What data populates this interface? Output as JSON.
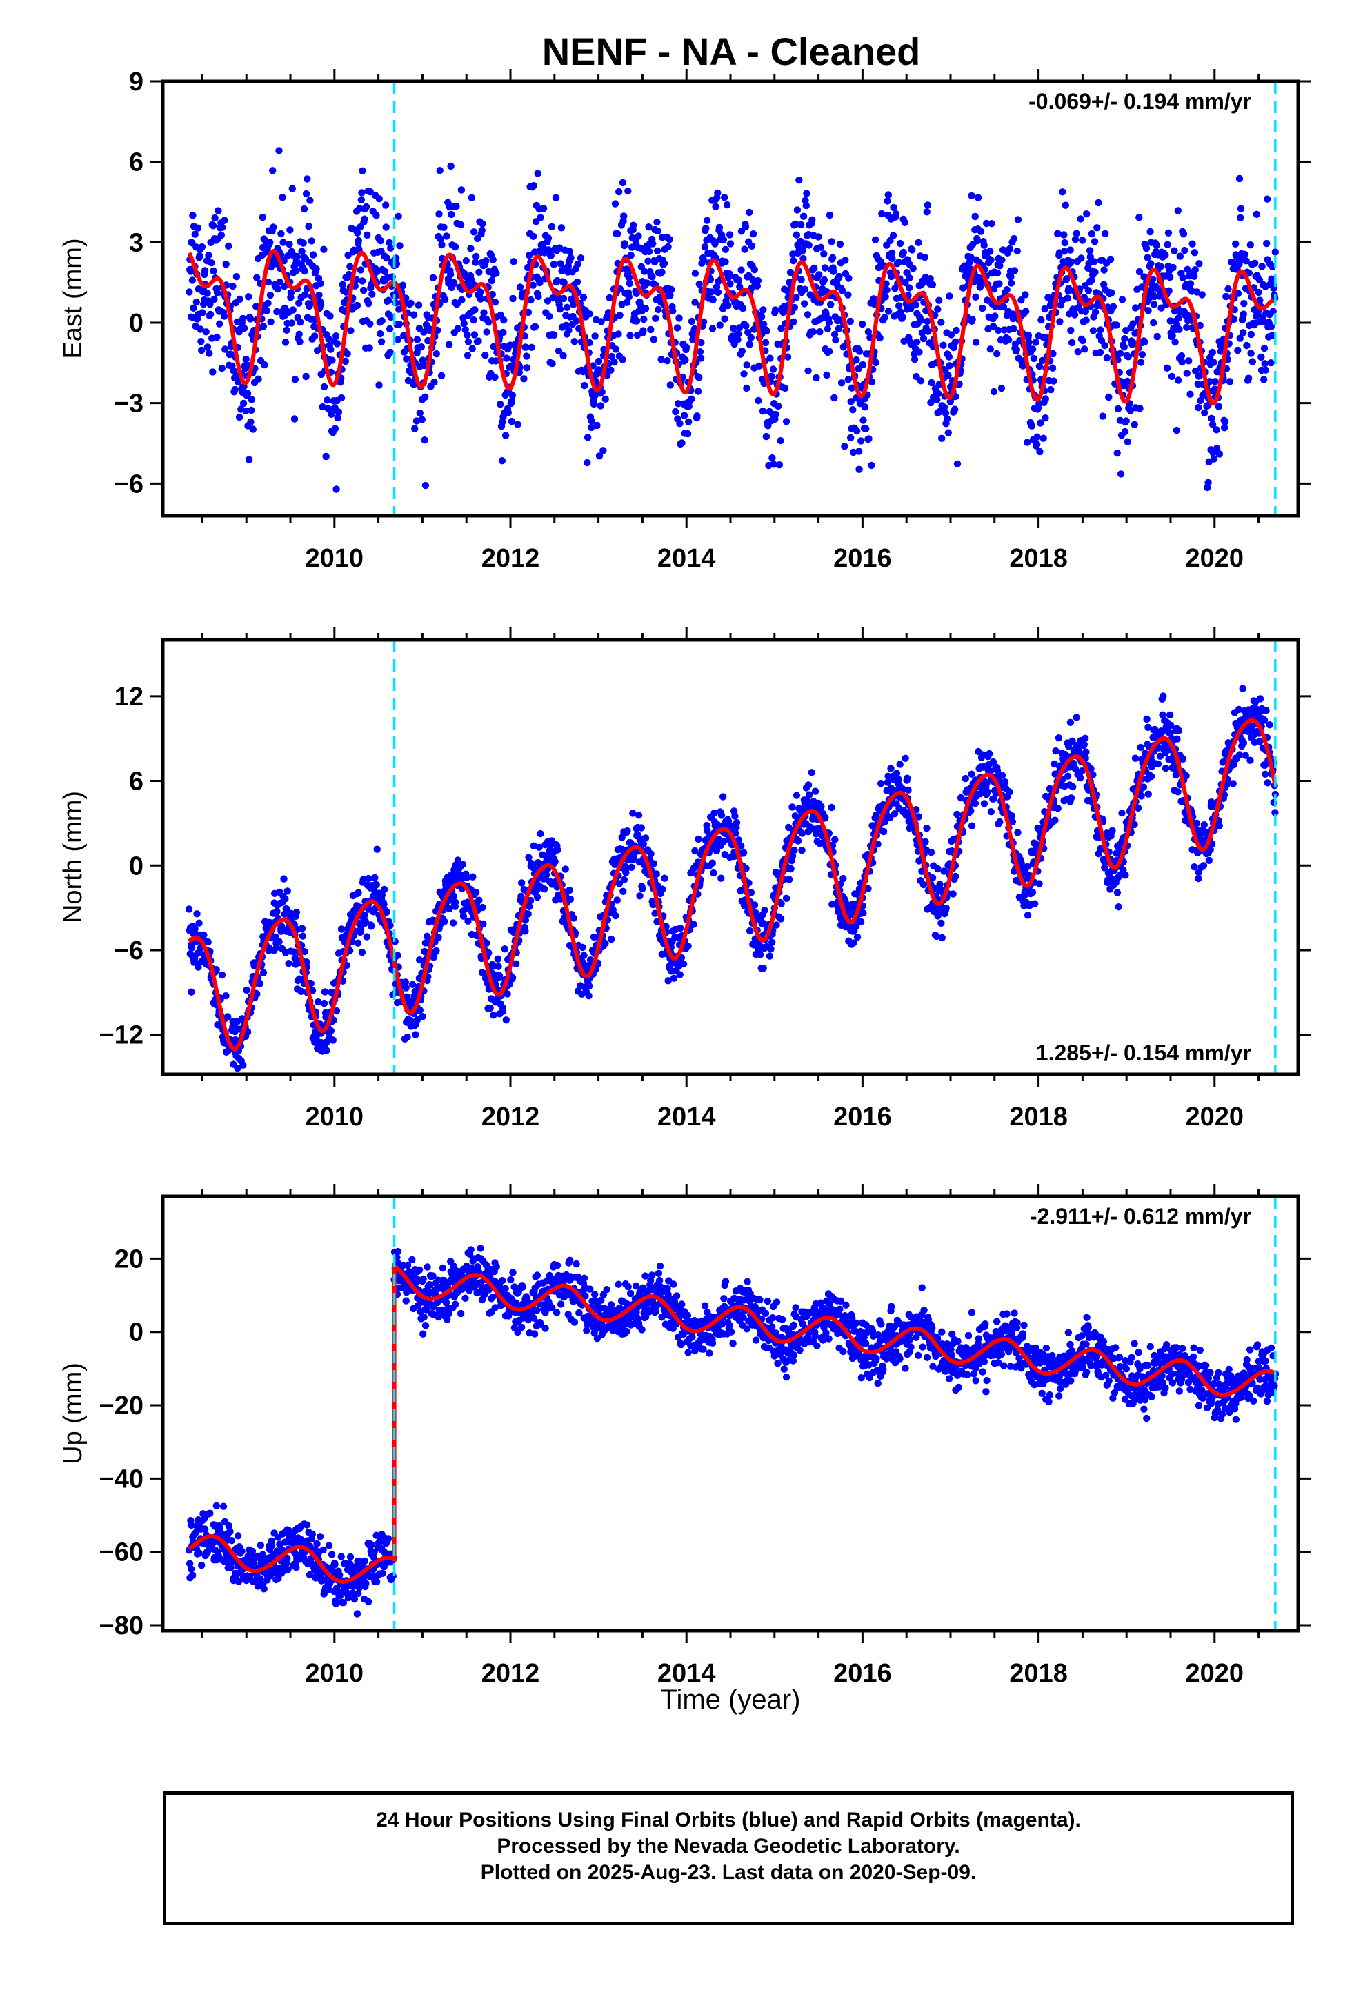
{
  "title": "NENF  - NA - Cleaned",
  "colors": {
    "points": "#0000ff",
    "model": "#ff0000",
    "offset_line": "#00e5ff",
    "frame": "#000000"
  },
  "footer": {
    "line1": "24 Hour Positions Using Final Orbits (blue) and Rapid Orbits (magenta).",
    "line2": "Processed by the Nevada Geodetic Laboratory.",
    "line3": "Plotted on 2025-Aug-23. Last data on 2020-Sep-09."
  },
  "chart_data": [
    {
      "type": "scatter",
      "title": "",
      "ylabel": "East (mm)",
      "xlabel": "",
      "rate_label": "-0.069+/- 0.194 mm/yr",
      "xlim": [
        2008.05,
        2020.95
      ],
      "ylim": [
        -7.2,
        9.0
      ],
      "yticks": [
        -6,
        -3,
        0,
        3,
        6,
        9
      ],
      "xticks": [
        2010,
        2012,
        2014,
        2016,
        2018,
        2020
      ],
      "offset_lines_year": [
        2010.68,
        2020.69
      ],
      "data_range": [
        2008.35,
        2020.69
      ],
      "model": {
        "mean": 0.3,
        "rate": -0.069,
        "ref_year": 2014.5,
        "amp_annual": 1.9,
        "phase_annual": 0.45,
        "amp_semi": 1.1,
        "phase_semi": 0.25,
        "step_year": null,
        "step": 0,
        "residual_sd": 1.4
      }
    },
    {
      "type": "scatter",
      "title": "",
      "ylabel": "North (mm)",
      "xlabel": "",
      "rate_label": "1.285+/- 0.154 mm/yr",
      "xlim": [
        2008.05,
        2020.95
      ],
      "ylim": [
        -14.8,
        16.0
      ],
      "yticks": [
        -12,
        -6,
        0,
        6,
        12
      ],
      "xticks": [
        2010,
        2012,
        2014,
        2016,
        2018,
        2020
      ],
      "offset_lines_year": [
        2010.68,
        2020.69
      ],
      "data_range": [
        2008.35,
        2020.69
      ],
      "model": {
        "mean": -1.0,
        "rate": 1.285,
        "ref_year": 2014.5,
        "amp_annual": 4.2,
        "phase_annual": 0.38,
        "amp_semi": 0.6,
        "phase_semi": 0.1,
        "step_year": null,
        "step": 0,
        "residual_sd": 1.1
      }
    },
    {
      "type": "scatter",
      "title": "",
      "ylabel": "Up (mm)",
      "xlabel": "Time (year)",
      "rate_label": "-2.911+/- 0.612 mm/yr",
      "xlim": [
        2008.05,
        2020.95
      ],
      "ylim": [
        -81.5,
        37.0
      ],
      "yticks": [
        -80,
        -60,
        -40,
        -20,
        0,
        20
      ],
      "xticks": [
        2010,
        2012,
        2014,
        2016,
        2018,
        2020
      ],
      "offset_lines_year": [
        2010.68,
        2020.69
      ],
      "data_range": [
        2008.35,
        2020.69
      ],
      "model": {
        "mean": 3.0,
        "rate": -2.911,
        "ref_year": 2014.5,
        "amp_annual": 4.0,
        "phase_annual": 0.6,
        "amp_semi": 0.3,
        "phase_semi": 0.2,
        "step_year": 2010.68,
        "step": 80.0,
        "residual_sd": 3.5
      }
    }
  ]
}
